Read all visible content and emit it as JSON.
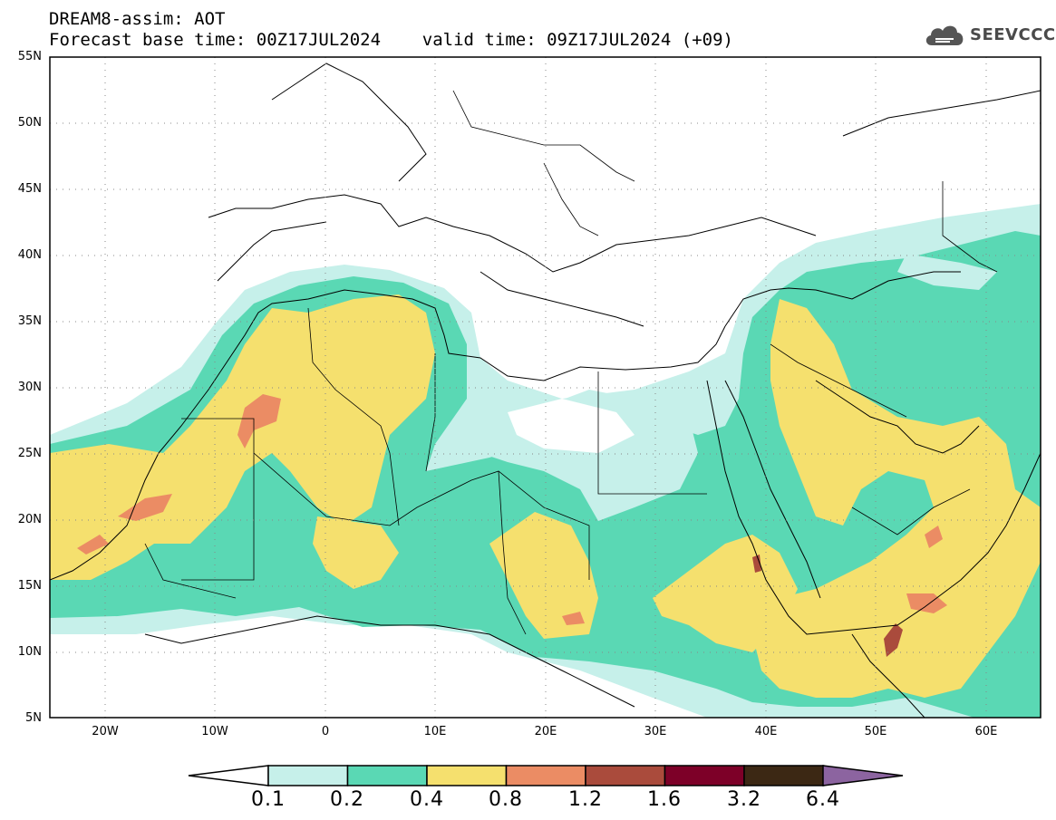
{
  "header": {
    "line1": "DREAM8-assim: AOT",
    "line2": "Forecast base time: 00Z17JUL2024    valid time: 09Z17JUL2024 (+09)"
  },
  "logo": {
    "text": "SEEVCCC",
    "icon": "cloud-icon"
  },
  "axes": {
    "y_labels": [
      "55N",
      "50N",
      "45N",
      "40N",
      "35N",
      "30N",
      "25N",
      "20N",
      "15N",
      "10N",
      "5N"
    ],
    "x_labels": [
      "20W",
      "10W",
      "0",
      "10E",
      "20E",
      "30E",
      "40E",
      "50E",
      "60E"
    ]
  },
  "colorbar": {
    "labels": [
      "0.1",
      "0.2",
      "0.4",
      "0.8",
      "1.2",
      "1.6",
      "3.2",
      "6.4"
    ],
    "colors": [
      "#c6f0ea",
      "#5ad8b4",
      "#f5e06e",
      "#eb8c64",
      "#aa4b3c",
      "#7d0028",
      "#3c2814",
      "#8c64a0"
    ],
    "under_color": "#ffffff"
  },
  "colors": {
    "c01": "#c6f0ea",
    "c02": "#5ad8b4",
    "c04": "#f5e06e",
    "c08": "#eb8c64",
    "c12": "#aa4b3c"
  }
}
